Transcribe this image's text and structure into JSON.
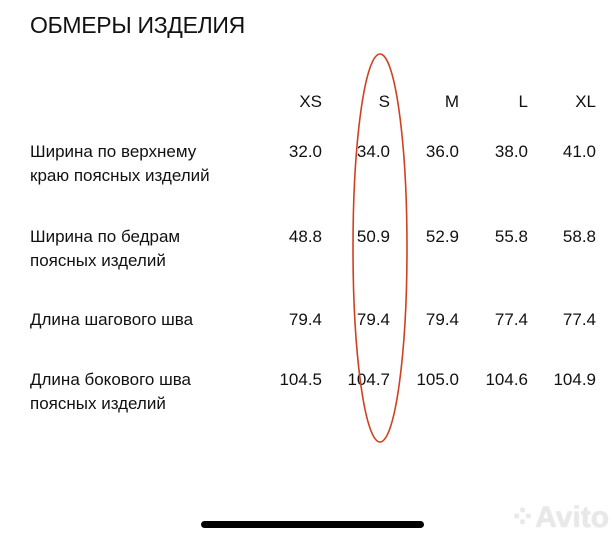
{
  "title": "ОБМЕРЫ ИЗДЕЛИЯ",
  "sizes": [
    "XS",
    "S",
    "M",
    "L",
    "XL"
  ],
  "rows": [
    {
      "label": "Ширина по верхнему краю поясных изделий",
      "values": [
        "32.0",
        "34.0",
        "36.0",
        "38.0",
        "41.0"
      ]
    },
    {
      "label": "Ширина по бедрам поясных изделий",
      "values": [
        "48.8",
        "50.9",
        "52.9",
        "55.8",
        "58.8"
      ]
    },
    {
      "label": "Длина шагового шва",
      "values": [
        "79.4",
        "79.4",
        "79.4",
        "77.4",
        "77.4"
      ]
    },
    {
      "label": "Длина бокового шва поясных изделий",
      "values": [
        "104.5",
        "104.7",
        "105.0",
        "104.6",
        "104.9"
      ]
    }
  ],
  "highlight": {
    "column": "S",
    "color": "#d0401f"
  },
  "watermark": "Avito"
}
